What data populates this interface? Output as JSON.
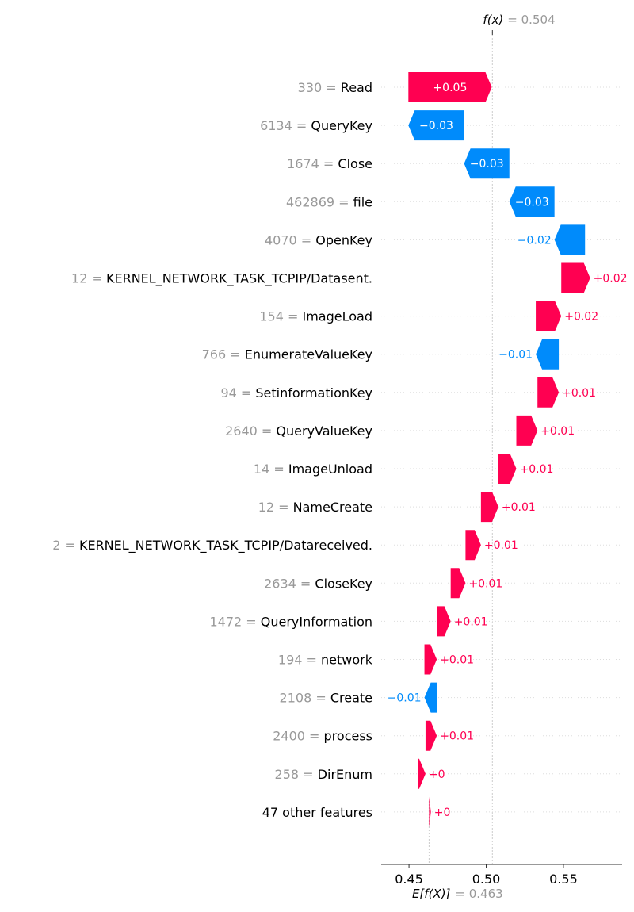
{
  "chart_data": {
    "type": "waterfall",
    "fx_label": "f(x)",
    "fx_value": 0.504,
    "fx_value_text": "= 0.504",
    "base_label": "E[f(X)]",
    "base_value": 0.463,
    "base_value_text": "= 0.463",
    "xlim": [
      0.432,
      0.588
    ],
    "xticks": [
      0.45,
      0.5,
      0.55
    ],
    "xtick_labels": [
      "0.45",
      "0.50",
      "0.55"
    ],
    "colors": {
      "positive": "#ff0051",
      "negative": "#008bfb",
      "value_text_gray": "#999999"
    },
    "features": [
      {
        "value": "330",
        "name": "Read",
        "start": 0.4496,
        "end": 0.5036,
        "label": "+0.05"
      },
      {
        "value": "6134",
        "name": "QueryKey",
        "start": 0.4857,
        "end": 0.4496,
        "label": "−0.03"
      },
      {
        "value": "1674",
        "name": "Close",
        "start": 0.515,
        "end": 0.4857,
        "label": "−0.03"
      },
      {
        "value": "462869",
        "name": "file",
        "start": 0.5442,
        "end": 0.515,
        "label": "−0.03"
      },
      {
        "value": "4070",
        "name": "OpenKey",
        "start": 0.564,
        "end": 0.5442,
        "label": "−0.02"
      },
      {
        "value": "12",
        "name": "KERNEL_NETWORK_TASK_TCPIP/Datasent.",
        "start": 0.5486,
        "end": 0.5673,
        "label": "+0.02"
      },
      {
        "value": "154",
        "name": "ImageLoad",
        "start": 0.5321,
        "end": 0.5486,
        "label": "+0.02"
      },
      {
        "value": "766",
        "name": "EnumerateValueKey",
        "start": 0.547,
        "end": 0.5321,
        "label": "−0.01"
      },
      {
        "value": "94",
        "name": "SetinformationKey",
        "start": 0.5332,
        "end": 0.547,
        "label": "+0.01"
      },
      {
        "value": "2640",
        "name": "QueryValueKey",
        "start": 0.5195,
        "end": 0.5332,
        "label": "+0.01"
      },
      {
        "value": "14",
        "name": "ImageUnload",
        "start": 0.5079,
        "end": 0.5195,
        "label": "+0.01"
      },
      {
        "value": "12",
        "name": "NameCreate",
        "start": 0.4966,
        "end": 0.5079,
        "label": "+0.01"
      },
      {
        "value": "2",
        "name": "KERNEL_NETWORK_TASK_TCPIP/Datareceived.",
        "start": 0.4866,
        "end": 0.4966,
        "label": "+0.01"
      },
      {
        "value": "2634",
        "name": "CloseKey",
        "start": 0.477,
        "end": 0.4866,
        "label": "+0.01"
      },
      {
        "value": "1472",
        "name": "QueryInformation",
        "start": 0.468,
        "end": 0.477,
        "label": "+0.01"
      },
      {
        "value": "194",
        "name": "network",
        "start": 0.46,
        "end": 0.468,
        "label": "+0.01"
      },
      {
        "value": "2108",
        "name": "Create",
        "start": 0.468,
        "end": 0.46,
        "label": "−0.01"
      },
      {
        "value": "2400",
        "name": "process",
        "start": 0.4607,
        "end": 0.468,
        "label": "+0.01"
      },
      {
        "value": "258",
        "name": "DirEnum",
        "start": 0.4557,
        "end": 0.4607,
        "label": "+0"
      },
      {
        "value": "",
        "name": "47 other features",
        "start": 0.463,
        "end": 0.4642,
        "label": "+0"
      }
    ]
  }
}
